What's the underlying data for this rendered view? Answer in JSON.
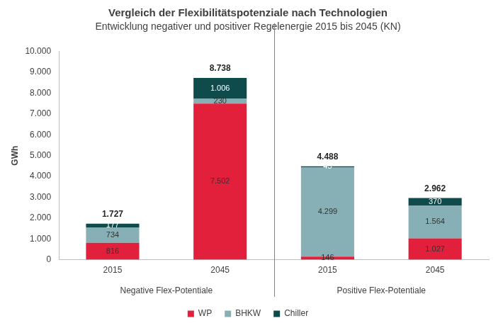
{
  "chart_data": {
    "type": "bar",
    "title": "Vergleich der Flexibilitätspotenziale nach Technologien",
    "subtitle": "Entwicklung negativer und positiver Regelenergie 2015 bis 2045 (KN)",
    "y_label": "GWh",
    "categories": [
      "2015",
      "2045",
      "2015",
      "2045"
    ],
    "groups": [
      "Negative Flex-Potentiale",
      "Positive Flex-Potentiale"
    ],
    "series": [
      {
        "name": "WP",
        "color": "#e2203b",
        "values": [
          816,
          7502,
          146,
          1027
        ],
        "value_labels": [
          "816",
          "7.502",
          "146",
          "1.027"
        ]
      },
      {
        "name": "BHKW",
        "color": "#86b0b5",
        "values": [
          734,
          230,
          4299,
          1564
        ],
        "value_labels": [
          "734",
          "230",
          "4.299",
          "1.564"
        ]
      },
      {
        "name": "Chiller",
        "color": "#0f4b4b",
        "values": [
          177,
          1006,
          43,
          370
        ],
        "value_labels": [
          "177",
          "1.006",
          "43",
          "370"
        ]
      }
    ],
    "totals": [
      1727,
      8738,
      4488,
      2962
    ],
    "total_labels": [
      "1.727",
      "8.738",
      "4.488",
      "2.962"
    ],
    "stacked": true,
    "data_labels": true,
    "ylim": [
      0,
      10000
    ],
    "yticks": [
      0,
      {
        "value": 1000,
        "label": "1.000"
      },
      {
        "value": 2000,
        "label": "2.000"
      },
      {
        "value": 3000,
        "label": "3.000"
      },
      {
        "value": 4000,
        "label": "4.000"
      },
      {
        "value": 5000,
        "label": "5.000"
      },
      {
        "value": 6000,
        "label": "6.000"
      },
      {
        "value": 7000,
        "label": "7.000"
      },
      {
        "value": 8000,
        "label": "8.000"
      },
      {
        "value": 9000,
        "label": "9.000"
      },
      {
        "value": 10000,
        "label": "10.000"
      }
    ],
    "grid": false,
    "legend": "bottom"
  }
}
